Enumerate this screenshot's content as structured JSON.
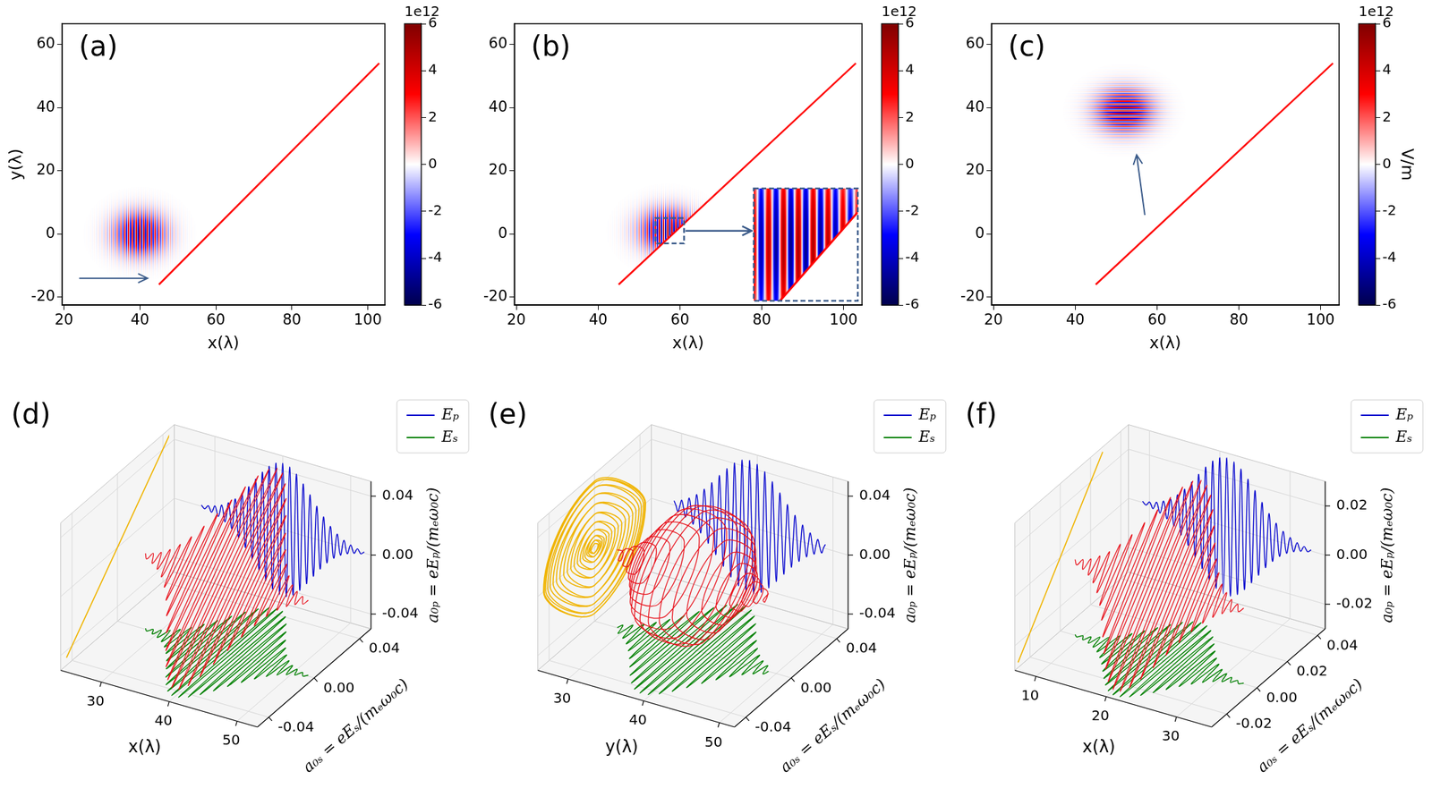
{
  "chart_data": [
    {
      "type": "heatmap",
      "label": "(a)",
      "xlabel": "x(λ)",
      "ylabel": "y(λ)",
      "xlim": [
        19.5,
        104.5
      ],
      "ylim": [
        -22.5,
        66.5
      ],
      "xticks": [
        20,
        40,
        60,
        80,
        100
      ],
      "yticks": [
        -20,
        0,
        20,
        40,
        60
      ],
      "interface": {
        "x": [
          45,
          103
        ],
        "y": [
          -16,
          54
        ],
        "color": "red"
      },
      "pulse": {
        "center": [
          40,
          0
        ],
        "width": 4.5,
        "amplitude": 5,
        "wavelength": 1,
        "k": [
          1,
          0
        ]
      },
      "arrow": {
        "from": [
          24,
          -14
        ],
        "to": [
          42,
          -14
        ]
      },
      "colorbar": {
        "range": [
          -6,
          6
        ],
        "ticks": [
          -6,
          -4,
          -2,
          0,
          2,
          4,
          6
        ],
        "offset_label": "1e12"
      }
    },
    {
      "type": "heatmap",
      "label": "(b)",
      "xlabel": "x(λ)",
      "xlim": [
        19.5,
        104.5
      ],
      "ylim": [
        -22.5,
        66.5
      ],
      "xticks": [
        20,
        40,
        60,
        80,
        100
      ],
      "yticks": [
        -20,
        0,
        20,
        40,
        60
      ],
      "interface": {
        "x": [
          45,
          103
        ],
        "y": [
          -16,
          54
        ],
        "color": "red"
      },
      "pulse": {
        "center": [
          57,
          1
        ],
        "width": 4.5,
        "amplitude": 5,
        "wavelength": 1,
        "k": [
          1,
          0
        ]
      },
      "inset": {
        "x": [
          54,
          61
        ],
        "y": [
          -3,
          5
        ]
      },
      "colorbar": {
        "range": [
          -6,
          6
        ],
        "ticks": [
          -6,
          -4,
          -2,
          0,
          2,
          4,
          6
        ],
        "offset_label": "1e12"
      }
    },
    {
      "type": "heatmap",
      "label": "(c)",
      "xlabel": "x(λ)",
      "xlim": [
        19.5,
        104.5
      ],
      "ylim": [
        -22.5,
        66.5
      ],
      "xticks": [
        20,
        40,
        60,
        80,
        100
      ],
      "yticks": [
        -20,
        0,
        20,
        40,
        60
      ],
      "interface": {
        "x": [
          45,
          103
        ],
        "y": [
          -16,
          54
        ],
        "color": "red"
      },
      "pulse": {
        "center": [
          52,
          39
        ],
        "width": 4.5,
        "amplitude": 5,
        "wavelength": 1,
        "k": [
          0,
          1
        ]
      },
      "arrow": {
        "from": [
          57,
          6
        ],
        "to": [
          55,
          25
        ]
      },
      "colorbar": {
        "range": [
          -6,
          6
        ],
        "ticks": [
          -6,
          -4,
          -2,
          0,
          2,
          4,
          6
        ],
        "offset_label": "1e12",
        "label": "V/m"
      }
    },
    {
      "type": "line3d",
      "label": "(d)",
      "xlabel": "x(λ)",
      "ylabel": "a₀ₛ = eEₛ/(mₑω₀c)",
      "zlabel": "a₀ₚ = eEₚ/(mₑω₀c)",
      "xlim": [
        24,
        53
      ],
      "xticks": [
        30,
        40,
        50
      ],
      "ylim": [
        -0.05,
        0.05
      ],
      "yticks": [
        -0.04,
        {
          "value": 0,
          "label": "0.00"
        },
        0.04
      ],
      "zlim": [
        -0.05,
        0.05
      ],
      "zticks": [
        -0.04,
        {
          "value": 0,
          "label": "0.00"
        },
        0.04
      ],
      "legend": "upper right",
      "x": [
        28,
        28.5,
        29,
        29.5,
        30,
        30.5,
        31,
        31.5,
        32,
        32.5,
        33,
        33.5,
        34,
        34.5,
        35,
        35.5,
        36,
        36.5,
        37,
        37.5,
        38,
        38.5,
        39,
        39.5,
        40,
        40.5,
        41,
        41.5,
        42,
        42.5,
        43,
        43.5,
        44,
        44.5,
        45,
        45.5,
        46,
        46.5,
        47,
        47.5,
        48,
        48.5,
        49,
        49.5,
        50,
        50.5,
        51,
        51.5,
        52
      ],
      "series": [
        {
          "name": "Eₚ",
          "color": "#0000cd",
          "values": [
            0.0008,
            -0.0011,
            0.0016,
            -0.0021,
            0.0028,
            -0.0037,
            0.0047,
            -0.006,
            0.0076,
            -0.0094,
            0.0115,
            -0.0139,
            0.0166,
            -0.0194,
            0.0225,
            -0.0256,
            0.0289,
            -0.032,
            0.035,
            -0.0378,
            0.0403,
            -0.0423,
            0.0438,
            -0.0447,
            0.045,
            -0.0447,
            0.0438,
            -0.0423,
            0.0403,
            -0.0378,
            0.035,
            -0.032,
            0.0289,
            -0.0256,
            0.0225,
            -0.0194,
            0.0166,
            -0.0139,
            0.0115,
            -0.0094,
            0.0076,
            -0.006,
            0.0047,
            -0.0037,
            0.0028,
            -0.0021,
            0.0016,
            -0.0011,
            0.0008
          ]
        },
        {
          "name": "Eₛ",
          "color": "#008000",
          "values": [
            0.0008,
            -0.0011,
            0.0016,
            -0.0021,
            0.0028,
            -0.0037,
            0.0047,
            -0.006,
            0.0076,
            -0.0094,
            0.0115,
            -0.0139,
            0.0166,
            -0.0194,
            0.0225,
            -0.0256,
            0.0289,
            -0.032,
            0.035,
            -0.0378,
            0.0403,
            -0.0423,
            0.0438,
            -0.0447,
            0.045,
            -0.0447,
            0.0438,
            -0.0423,
            0.0403,
            -0.0378,
            0.035,
            -0.032,
            0.0289,
            -0.0256,
            0.0225,
            -0.0194,
            0.0166,
            -0.0139,
            0.0115,
            -0.0094,
            0.0076,
            -0.006,
            0.0047,
            -0.0037,
            0.0028,
            -0.0021,
            0.0016,
            -0.0011,
            0.0008
          ]
        }
      ]
    },
    {
      "type": "line3d",
      "label": "(e)",
      "xlabel": "y(λ)",
      "ylabel": "a₀ₛ = eEₛ/(mₑω₀c)",
      "zlabel": "a₀ₚ = eEₚ/(mₑω₀c)",
      "xlim": [
        26,
        52
      ],
      "xticks": [
        30,
        40,
        50
      ],
      "ylim": [
        -0.05,
        0.05
      ],
      "yticks": [
        -0.04,
        {
          "value": 0,
          "label": "0.00"
        },
        0.04
      ],
      "zlim": [
        -0.05,
        0.05
      ],
      "zticks": [
        -0.04,
        {
          "value": 0,
          "label": "0.00"
        },
        0.04
      ],
      "legend": "upper right",
      "x": [
        29,
        29.25,
        29.5,
        29.75,
        30,
        30.25,
        30.5,
        30.75,
        31,
        31.25,
        31.5,
        31.75,
        32,
        32.25,
        32.5,
        32.75,
        33,
        33.25,
        33.5,
        33.75,
        34,
        34.25,
        34.5,
        34.75,
        35,
        35.25,
        35.5,
        35.75,
        36,
        36.25,
        36.5,
        36.75,
        37,
        37.25,
        37.5,
        37.75,
        38,
        38.25,
        38.5,
        38.75,
        39,
        39.25,
        39.5,
        39.75,
        40,
        40.25,
        40.5,
        40.75,
        41,
        41.25,
        41.5,
        41.75,
        42,
        42.25,
        42.5,
        42.75,
        43,
        43.25,
        43.5,
        43.75,
        44,
        44.25,
        44.5,
        44.75,
        45,
        45.25,
        45.5,
        45.75,
        46,
        46.25,
        46.5,
        46.75,
        47,
        47.25,
        47.5,
        47.75,
        48,
        48.25,
        48.5,
        48.75,
        49
      ],
      "series": [
        {
          "name": "Eₚ",
          "color": "#0000cd",
          "values": [
            0.0028,
            0,
            -0.0037,
            0,
            0.0047,
            0,
            -0.006,
            0,
            0.0076,
            0,
            -0.0094,
            0,
            0.0115,
            0,
            -0.0139,
            0,
            0.0166,
            0,
            -0.0194,
            0,
            0.0225,
            0,
            -0.0256,
            0,
            0.0289,
            0,
            -0.032,
            0,
            0.035,
            0,
            -0.0378,
            0,
            0.0403,
            0,
            -0.0423,
            0,
            0.0438,
            0,
            -0.0447,
            0,
            0.045,
            0,
            -0.0447,
            0,
            0.0438,
            0,
            -0.0423,
            0,
            0.0403,
            0,
            -0.0378,
            0,
            0.035,
            0,
            -0.032,
            0,
            0.0289,
            0,
            -0.0256,
            0,
            0.0225,
            0,
            -0.0194,
            0,
            0.0166,
            0,
            -0.0139,
            0,
            0.0115,
            0,
            -0.0094,
            0,
            0.0076,
            0,
            -0.006,
            0,
            0.0047,
            0,
            -0.0037,
            0,
            0.0028
          ]
        },
        {
          "name": "Eₛ",
          "color": "#008000",
          "values": [
            0,
            0.0032,
            0,
            -0.0042,
            0,
            0.0054,
            0,
            -0.0068,
            0,
            0.0085,
            0,
            -0.0104,
            0,
            0.0127,
            0,
            -0.0152,
            0,
            0.018,
            0,
            -0.0209,
            0,
            0.024,
            0,
            -0.0272,
            0,
            0.0305,
            0,
            -0.0336,
            0,
            0.0365,
            0,
            -0.0391,
            0,
            0.0413,
            0,
            -0.0431,
            0,
            0.0443,
            0,
            -0.0449,
            0,
            0.0449,
            0,
            -0.0443,
            0,
            0.0431,
            0,
            -0.0413,
            0,
            0.0391,
            0,
            -0.0365,
            0,
            0.0336,
            0,
            -0.0305,
            0,
            0.0272,
            0,
            -0.024,
            0,
            0.0209,
            0,
            -0.018,
            0,
            0.0152,
            0,
            -0.0127,
            0,
            0.0104,
            0,
            -0.0085,
            0,
            0.0068,
            0,
            -0.0054,
            0,
            0.0042,
            0,
            -0.0032,
            0
          ]
        }
      ]
    },
    {
      "type": "line3d",
      "label": "(f)",
      "xlabel": "x(λ)",
      "ylabel": "a₀ₛ = eEₛ/(mₑω₀c)",
      "zlabel": "a₀ₚ = eEₚ/(mₑω₀c)",
      "xlim": [
        7,
        35
      ],
      "xticks": [
        10,
        20,
        30
      ],
      "ylim": [
        -0.03,
        0.045
      ],
      "yticks": [
        -0.02,
        {
          "value": 0,
          "label": "0.00"
        },
        0.02,
        0.04
      ],
      "zlim": [
        -0.03,
        0.03
      ],
      "zticks": [
        -0.02,
        {
          "value": 0,
          "label": "0.00"
        },
        0.02
      ],
      "legend": "upper right",
      "x": [
        9,
        9.5,
        10,
        10.5,
        11,
        11.5,
        12,
        12.5,
        13,
        13.5,
        14,
        14.5,
        15,
        15.5,
        16,
        16.5,
        17,
        17.5,
        18,
        18.5,
        19,
        19.5,
        20,
        20.5,
        21,
        21.5,
        22,
        22.5,
        23,
        23.5,
        24,
        24.5,
        25,
        25.5,
        26,
        26.5,
        27,
        27.5,
        28,
        28.5,
        29,
        29.5,
        30,
        30.5,
        31,
        31.5,
        32,
        32.5,
        33
      ],
      "series": [
        {
          "name": "Eₚ",
          "color": "#0000cd",
          "values": [
            0.0005,
            -0.0007,
            0.001,
            -0.0013,
            0.0017,
            -0.0023,
            0.003,
            -0.0038,
            0.0047,
            -0.0059,
            0.0072,
            -0.0087,
            0.0103,
            -0.0121,
            0.014,
            -0.016,
            0.018,
            -0.0199,
            0.0218,
            -0.0235,
            0.0251,
            -0.0263,
            0.0272,
            -0.0278,
            0.028,
            -0.0278,
            0.0272,
            -0.0263,
            0.0251,
            -0.0235,
            0.0218,
            -0.0199,
            0.018,
            -0.016,
            0.014,
            -0.0121,
            0.0103,
            -0.0087,
            0.0072,
            -0.0059,
            0.0047,
            -0.0038,
            0.003,
            -0.0023,
            0.0017,
            -0.0013,
            0.001,
            -0.0007,
            0.0005
          ]
        },
        {
          "name": "Eₛ",
          "color": "#008000",
          "values": [
            0.0005,
            -0.0007,
            0.001,
            -0.0013,
            0.0017,
            -0.0023,
            0.003,
            -0.0038,
            0.0047,
            -0.0059,
            0.0072,
            -0.0087,
            0.0103,
            -0.0121,
            0.014,
            -0.016,
            0.018,
            -0.0199,
            0.0218,
            -0.0235,
            0.0251,
            -0.0263,
            0.0272,
            -0.0278,
            0.028,
            -0.0278,
            0.0272,
            -0.0263,
            0.0251,
            -0.0235,
            0.0218,
            -0.0199,
            0.018,
            -0.016,
            0.014,
            -0.0121,
            0.0103,
            -0.0087,
            0.0072,
            -0.0059,
            0.0047,
            -0.0038,
            0.003,
            -0.0023,
            0.0017,
            -0.0013,
            0.001,
            -0.0007,
            0.0005
          ]
        }
      ]
    }
  ]
}
